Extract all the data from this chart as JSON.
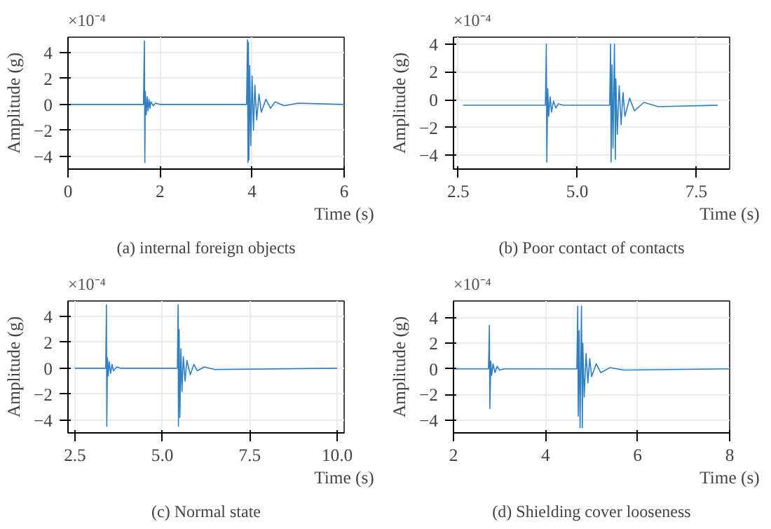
{
  "chart_data": [
    {
      "type": "line",
      "xlabel": "Time (s)",
      "ylabel": "Amplitude (g)",
      "annotations": [
        "×10⁻⁴",
        "(a) internal foreign objects"
      ],
      "xlim": [
        0,
        6
      ],
      "ylim": [
        -5,
        5.2
      ],
      "xticks": [
        0,
        2,
        4,
        6
      ],
      "yticks": [
        -4,
        -2,
        0,
        2,
        4
      ],
      "grid": true,
      "series": [
        {
          "color": "#2f7fc1",
          "x": [
            0,
            1.64,
            1.66,
            1.67,
            1.68,
            1.7,
            1.72,
            1.74,
            1.76,
            1.78,
            1.8,
            1.85,
            1.9,
            2.0,
            2.2,
            3.88,
            3.9,
            3.91,
            3.92,
            3.93,
            3.95,
            3.97,
            4.0,
            4.03,
            4.06,
            4.1,
            4.15,
            4.2,
            4.3,
            4.4,
            4.5,
            4.7,
            5.0,
            6.0
          ],
          "values": [
            0,
            0,
            4.9,
            -4.5,
            1.0,
            -0.8,
            0.6,
            -0.5,
            0.4,
            -0.3,
            0.2,
            -0.1,
            0.1,
            0,
            0,
            0,
            5.0,
            -4.5,
            4.8,
            -4.3,
            3.0,
            -3.2,
            2.2,
            -2.0,
            1.5,
            -1.2,
            0.8,
            -0.6,
            0.4,
            -0.3,
            0.2,
            -0.1,
            0.1,
            0
          ]
        }
      ]
    },
    {
      "type": "line",
      "xlabel": "Time (s)",
      "ylabel": "Amplitude (g)",
      "annotations": [
        "×10⁻⁴",
        "(b) Poor contact of contacts"
      ],
      "xlim": [
        2.4,
        8.2
      ],
      "ylim": [
        -5,
        4.5
      ],
      "xticks": [
        {
          "value": 2.5,
          "label": "2.5"
        },
        {
          "value": 5,
          "label": "5.0"
        },
        {
          "value": 7.5,
          "label": "7.5"
        }
      ],
      "yticks": [
        -4,
        -2,
        0,
        2,
        4
      ],
      "grid": true,
      "series": [
        {
          "color": "#2f7fc1",
          "x": [
            2.6,
            4.33,
            4.35,
            4.36,
            4.38,
            4.4,
            4.43,
            4.46,
            4.5,
            4.55,
            4.6,
            4.7,
            5.68,
            5.7,
            5.71,
            5.73,
            5.75,
            5.78,
            5.8,
            5.81,
            5.84,
            5.88,
            5.92,
            5.96,
            6.0,
            6.1,
            6.2,
            6.4,
            6.7,
            7.95
          ],
          "values": [
            -0.4,
            -0.4,
            4.0,
            -4.5,
            0.8,
            -1.2,
            0.2,
            -0.9,
            -0.1,
            -0.6,
            -0.3,
            -0.4,
            -0.4,
            4.0,
            -4.5,
            2.5,
            -3.5,
            4.0,
            -4.3,
            1.5,
            -2.5,
            1.0,
            -1.8,
            0.5,
            -1.2,
            0.1,
            -0.8,
            -0.2,
            -0.5,
            -0.4
          ]
        }
      ]
    },
    {
      "type": "line",
      "xlabel": "Time (s)",
      "ylabel": "Amplitude (g)",
      "annotations": [
        "×10⁻⁴",
        "(c) Normal state"
      ],
      "xlim": [
        2.3,
        10.2
      ],
      "ylim": [
        -5,
        5.2
      ],
      "xticks": [
        {
          "value": 2.5,
          "label": "2.5"
        },
        {
          "value": 5,
          "label": "5.0"
        },
        {
          "value": 7.5,
          "label": "7.5"
        },
        {
          "value": 10,
          "label": "10.0"
        }
      ],
      "yticks": [
        -4,
        -2,
        0,
        2,
        4
      ],
      "grid": true,
      "series": [
        {
          "color": "#2f7fc1",
          "x": [
            2.5,
            3.38,
            3.4,
            3.41,
            3.43,
            3.45,
            3.48,
            3.52,
            3.56,
            3.6,
            3.7,
            3.8,
            5.43,
            5.45,
            5.46,
            5.48,
            5.5,
            5.53,
            5.56,
            5.6,
            5.65,
            5.7,
            5.8,
            5.9,
            6.0,
            6.2,
            6.5,
            10.0
          ],
          "values": [
            0,
            0,
            4.9,
            -4.5,
            0.8,
            -0.6,
            0.5,
            -0.4,
            0.3,
            -0.2,
            0.1,
            0,
            0,
            4.9,
            -4.5,
            3.0,
            -3.8,
            1.5,
            -1.8,
            0.9,
            -1.0,
            0.6,
            -0.5,
            0.3,
            -0.2,
            0.1,
            -0.1,
            0
          ]
        }
      ]
    },
    {
      "type": "line",
      "xlabel": "Time (s)",
      "ylabel": "Amplitude (g)",
      "annotations": [
        "×10⁻⁴",
        "(d) Shielding cover looseness"
      ],
      "xlim": [
        2,
        8
      ],
      "ylim": [
        -5,
        5.3
      ],
      "xticks": [
        2,
        4,
        6,
        8
      ],
      "yticks": [
        -4,
        -2,
        0,
        2,
        4
      ],
      "grid": true,
      "series": [
        {
          "color": "#2f7fc1",
          "x": [
            2,
            2.76,
            2.78,
            2.79,
            2.81,
            2.83,
            2.86,
            2.9,
            2.95,
            3.0,
            3.1,
            4.68,
            4.7,
            4.71,
            4.73,
            4.75,
            4.78,
            4.8,
            4.81,
            4.84,
            4.88,
            4.92,
            4.96,
            5.0,
            5.1,
            5.2,
            5.4,
            5.7,
            8.0
          ],
          "values": [
            0,
            0,
            3.4,
            -3.1,
            0.6,
            -0.5,
            0.4,
            -0.3,
            0.2,
            -0.1,
            0,
            0,
            4.9,
            -3.7,
            3.0,
            -4.6,
            4.9,
            -4.6,
            2.0,
            -2.2,
            1.2,
            -1.1,
            0.8,
            -0.6,
            0.4,
            -0.3,
            0.1,
            -0.1,
            0
          ]
        }
      ]
    }
  ]
}
